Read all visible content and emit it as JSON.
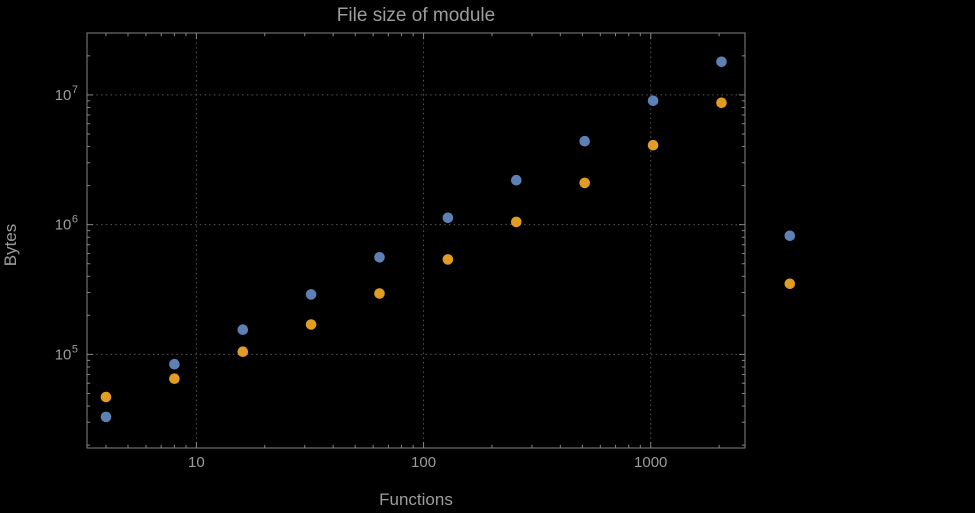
{
  "chart_data": {
    "type": "scatter",
    "title": "File size of module",
    "xlabel": "Functions",
    "ylabel": "Bytes",
    "x_scale": "log",
    "y_scale": "log",
    "xlim": [
      3.3,
      2600
    ],
    "ylim": [
      19000,
      30000000
    ],
    "grid": "dotted gridlines at decade ticks only",
    "legend_position": "none",
    "x": [
      4,
      8,
      16,
      32,
      64,
      128,
      256,
      512,
      1024,
      2048,
      4096
    ],
    "series": [
      {
        "name": "series-blue",
        "color": "#5e81b5",
        "values": [
          33000,
          84000,
          155000,
          290000,
          560000,
          1130000,
          2200000,
          4400000,
          9000000,
          18000000,
          820000
        ]
      },
      {
        "name": "series-orange",
        "color": "#e19c24",
        "values": [
          47000,
          65000,
          105000,
          170000,
          295000,
          540000,
          1050000,
          2100000,
          4100000,
          8700000,
          350000
        ]
      }
    ],
    "x_ticks": [
      {
        "value": 10,
        "label": "10"
      },
      {
        "value": 100,
        "label": "100"
      },
      {
        "value": 1000,
        "label": "1000"
      }
    ],
    "y_ticks": [
      {
        "value": 100000,
        "base": "10",
        "exp": "5"
      },
      {
        "value": 1000000,
        "base": "10",
        "exp": "6"
      },
      {
        "value": 10000000,
        "base": "10",
        "exp": "7"
      }
    ]
  },
  "style": {
    "background": "#000000",
    "text_color": "#9c9c9c",
    "frame_color": "#858585",
    "grid_color": "#585858",
    "point_radius": 5.3
  }
}
